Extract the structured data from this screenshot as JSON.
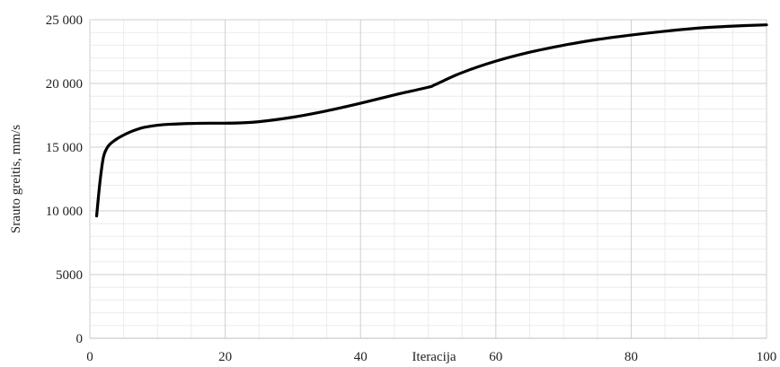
{
  "chart_data": {
    "type": "line",
    "xlabel": "Iteracija",
    "ylabel": "Srauto greitis, mm/s",
    "xlim": [
      0,
      100
    ],
    "ylim": [
      0,
      25000
    ],
    "x_ticks": [
      0,
      20,
      40,
      60,
      80,
      100
    ],
    "x_tick_labels": [
      "0",
      "20",
      "40",
      "60",
      "80",
      "100"
    ],
    "y_ticks": [
      0,
      5000,
      10000,
      15000,
      20000,
      25000
    ],
    "y_tick_labels": [
      "0",
      "5000",
      "10 000",
      "15 000",
      "20 000",
      "25 000"
    ],
    "grid": true,
    "minor_grid": true,
    "line_color": "#000000",
    "series": [
      {
        "x": [
          1,
          1.5,
          2,
          2.5,
          3,
          4,
          5,
          6,
          7,
          8,
          10,
          12,
          15,
          18,
          20,
          22,
          25,
          30,
          35,
          40,
          45,
          50,
          51,
          55,
          60,
          65,
          70,
          75,
          80,
          85,
          90,
          95,
          100
        ],
        "values": [
          9600,
          12300,
          14200,
          14900,
          15250,
          15650,
          15950,
          16200,
          16400,
          16550,
          16720,
          16800,
          16860,
          16880,
          16880,
          16900,
          17000,
          17350,
          17850,
          18450,
          19100,
          19700,
          19900,
          20850,
          21750,
          22450,
          23000,
          23450,
          23800,
          24100,
          24350,
          24500,
          24600
        ]
      }
    ]
  }
}
